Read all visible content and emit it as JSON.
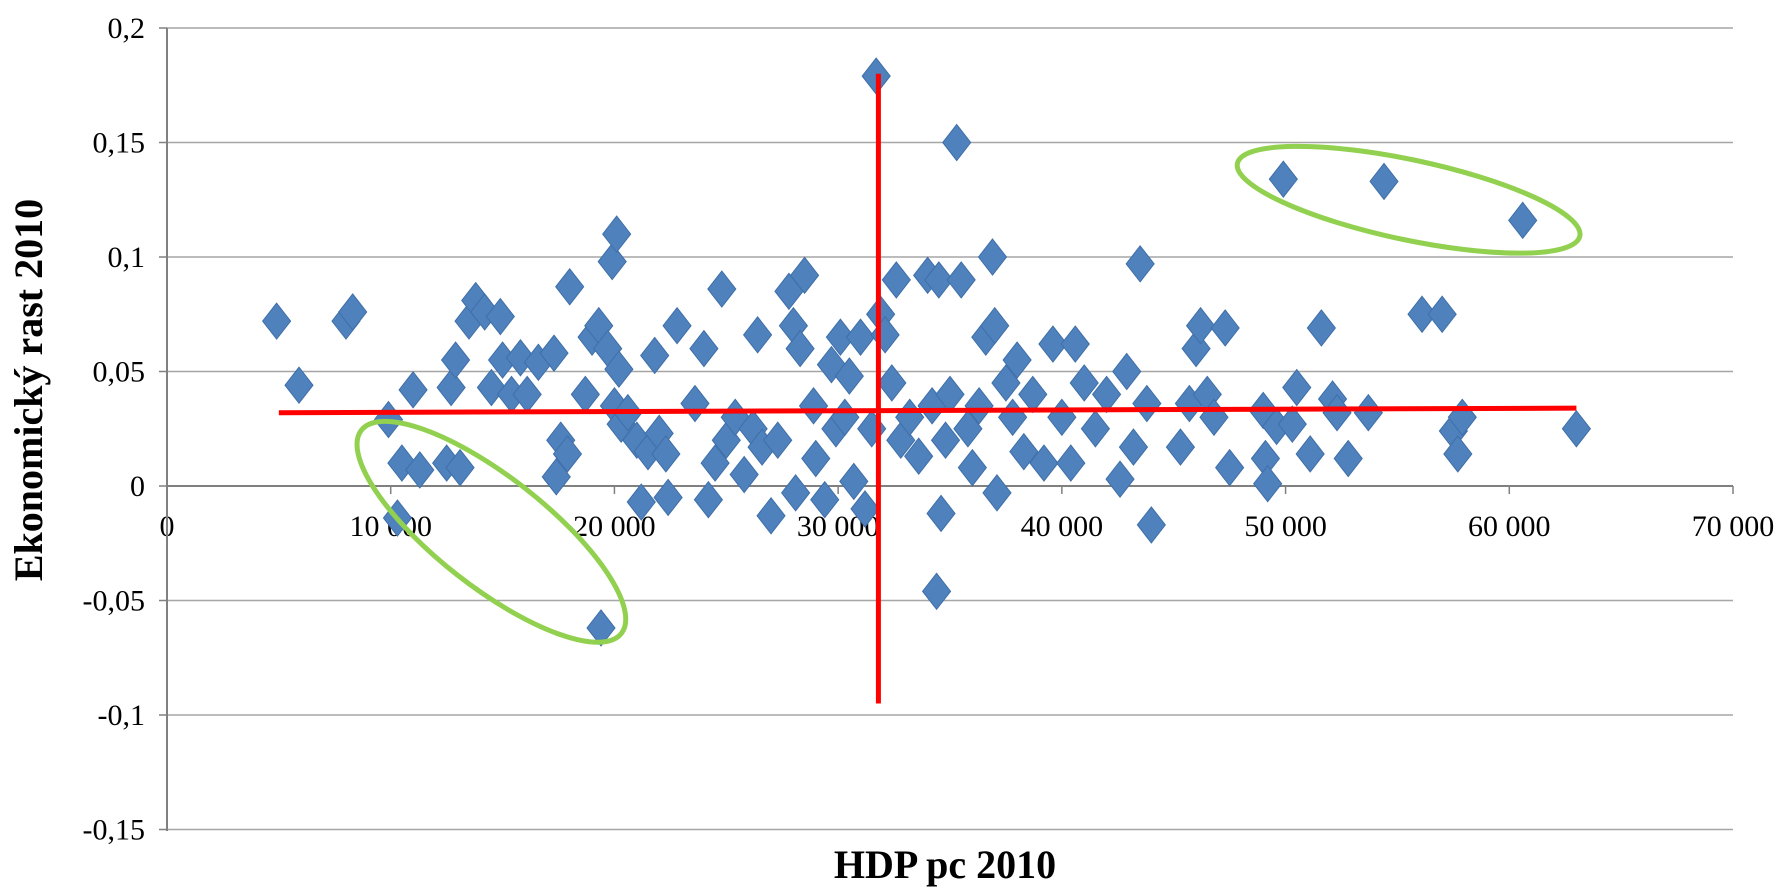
{
  "chart_data": {
    "type": "scatter",
    "title": "",
    "xlabel": "HDP pc 2010",
    "ylabel": "Ekonomický rast 2010",
    "xlim": [
      0,
      70000
    ],
    "ylim": [
      -0.15,
      0.2
    ],
    "x_ticks": [
      {
        "value": 0,
        "label": "0"
      },
      {
        "value": 10000,
        "label": "10 000"
      },
      {
        "value": 20000,
        "label": "20 000"
      },
      {
        "value": 30000,
        "label": "30 000"
      },
      {
        "value": 40000,
        "label": "40 000"
      },
      {
        "value": 50000,
        "label": "50 000"
      },
      {
        "value": 60000,
        "label": "60 000"
      },
      {
        "value": 70000,
        "label": "70 000"
      }
    ],
    "y_ticks": [
      {
        "value": 0.2,
        "label": "0,2"
      },
      {
        "value": 0.15,
        "label": "0,15"
      },
      {
        "value": 0.1,
        "label": "0,1"
      },
      {
        "value": 0.05,
        "label": "0,05"
      },
      {
        "value": 0,
        "label": "0"
      },
      {
        "value": -0.05,
        "label": "-0,05"
      },
      {
        "value": -0.1,
        "label": "-0,1"
      },
      {
        "value": -0.15,
        "label": "-0,15"
      }
    ],
    "grid": "horizontal",
    "legend": "none",
    "colors": {
      "points": "#4f81bd",
      "mean_lines": "#ff0000",
      "highlight": "#92d050",
      "gridline": "#a6a6a6"
    },
    "marker": "diamond",
    "reference_lines": [
      {
        "orientation": "horizontal",
        "x_range": [
          5000,
          63000
        ],
        "y_range": [
          0.032,
          0.034
        ]
      },
      {
        "orientation": "vertical",
        "x": 31800,
        "y_range": [
          -0.095,
          0.18
        ]
      }
    ],
    "highlight_ellipses": [
      {
        "center": [
          55500,
          0.125
        ],
        "note": "top-right cluster"
      },
      {
        "center": [
          14500,
          -0.02
        ],
        "note": "bottom-left cluster"
      }
    ],
    "points": [
      [
        4900,
        0.072
      ],
      [
        5900,
        0.044
      ],
      [
        8000,
        0.072
      ],
      [
        8300,
        0.076
      ],
      [
        9900,
        0.029
      ],
      [
        10300,
        -0.014
      ],
      [
        10500,
        0.01
      ],
      [
        11000,
        0.042
      ],
      [
        11300,
        0.007
      ],
      [
        12500,
        0.01
      ],
      [
        12700,
        0.043
      ],
      [
        12900,
        0.055
      ],
      [
        13100,
        0.008
      ],
      [
        13500,
        0.072
      ],
      [
        13800,
        0.081
      ],
      [
        14200,
        0.076
      ],
      [
        14500,
        0.043
      ],
      [
        14900,
        0.074
      ],
      [
        15000,
        0.055
      ],
      [
        15400,
        0.04
      ],
      [
        15800,
        0.056
      ],
      [
        16100,
        0.04
      ],
      [
        16600,
        0.054
      ],
      [
        17300,
        0.058
      ],
      [
        17400,
        0.004
      ],
      [
        17600,
        0.02
      ],
      [
        17900,
        0.014
      ],
      [
        18000,
        0.087
      ],
      [
        18700,
        0.04
      ],
      [
        19000,
        0.065
      ],
      [
        19300,
        0.07
      ],
      [
        19400,
        -0.062
      ],
      [
        19700,
        0.06
      ],
      [
        19900,
        0.098
      ],
      [
        20100,
        0.11
      ],
      [
        20000,
        0.035
      ],
      [
        20200,
        0.051
      ],
      [
        20300,
        0.027
      ],
      [
        20600,
        0.032
      ],
      [
        21000,
        0.02
      ],
      [
        21200,
        -0.007
      ],
      [
        21500,
        0.015
      ],
      [
        21800,
        0.057
      ],
      [
        22000,
        0.023
      ],
      [
        22300,
        0.014
      ],
      [
        22400,
        -0.005
      ],
      [
        22800,
        0.07
      ],
      [
        23600,
        0.036
      ],
      [
        24000,
        0.06
      ],
      [
        24200,
        -0.006
      ],
      [
        24500,
        0.01
      ],
      [
        24800,
        0.086
      ],
      [
        25000,
        0.02
      ],
      [
        25400,
        0.03
      ],
      [
        25800,
        0.005
      ],
      [
        26200,
        0.025
      ],
      [
        26400,
        0.066
      ],
      [
        26600,
        0.017
      ],
      [
        27000,
        -0.013
      ],
      [
        27300,
        0.02
      ],
      [
        27800,
        0.085
      ],
      [
        28000,
        0.07
      ],
      [
        28100,
        -0.003
      ],
      [
        28300,
        0.06
      ],
      [
        28500,
        0.092
      ],
      [
        28900,
        0.035
      ],
      [
        29000,
        0.012
      ],
      [
        29400,
        -0.006
      ],
      [
        29700,
        0.053
      ],
      [
        29900,
        0.025
      ],
      [
        30100,
        0.065
      ],
      [
        30300,
        0.03
      ],
      [
        30500,
        0.048
      ],
      [
        30700,
        0.002
      ],
      [
        31000,
        0.065
      ],
      [
        31200,
        -0.01
      ],
      [
        31500,
        0.025
      ],
      [
        31700,
        0.179
      ],
      [
        31900,
        0.075
      ],
      [
        32100,
        0.066
      ],
      [
        32400,
        0.045
      ],
      [
        32600,
        0.09
      ],
      [
        32800,
        0.02
      ],
      [
        33200,
        0.03
      ],
      [
        33600,
        0.013
      ],
      [
        34000,
        0.092
      ],
      [
        34200,
        0.035
      ],
      [
        34400,
        -0.046
      ],
      [
        34500,
        0.09
      ],
      [
        34600,
        -0.012
      ],
      [
        34800,
        0.02
      ],
      [
        35000,
        0.04
      ],
      [
        35300,
        0.15
      ],
      [
        35500,
        0.09
      ],
      [
        35800,
        0.025
      ],
      [
        36000,
        0.008
      ],
      [
        36300,
        0.035
      ],
      [
        36600,
        0.065
      ],
      [
        36900,
        0.1
      ],
      [
        37000,
        0.07
      ],
      [
        37100,
        -0.003
      ],
      [
        37500,
        0.045
      ],
      [
        37800,
        0.03
      ],
      [
        38000,
        0.055
      ],
      [
        38300,
        0.015
      ],
      [
        38700,
        0.04
      ],
      [
        39200,
        0.01
      ],
      [
        39600,
        0.062
      ],
      [
        40000,
        0.03
      ],
      [
        40400,
        0.01
      ],
      [
        40600,
        0.062
      ],
      [
        41000,
        0.045
      ],
      [
        41500,
        0.025
      ],
      [
        42000,
        0.04
      ],
      [
        42600,
        0.003
      ],
      [
        42900,
        0.05
      ],
      [
        43200,
        0.017
      ],
      [
        43500,
        0.097
      ],
      [
        43800,
        0.036
      ],
      [
        44000,
        -0.017
      ],
      [
        45300,
        0.017
      ],
      [
        45700,
        0.036
      ],
      [
        46000,
        0.06
      ],
      [
        46200,
        0.07
      ],
      [
        46500,
        0.04
      ],
      [
        46800,
        0.03
      ],
      [
        47300,
        0.069
      ],
      [
        47500,
        0.008
      ],
      [
        49000,
        0.033
      ],
      [
        49100,
        0.012
      ],
      [
        49200,
        0.001
      ],
      [
        49600,
        0.026
      ],
      [
        49900,
        0.134
      ],
      [
        50300,
        0.027
      ],
      [
        50500,
        0.043
      ],
      [
        51100,
        0.014
      ],
      [
        51600,
        0.069
      ],
      [
        52100,
        0.038
      ],
      [
        52300,
        0.032
      ],
      [
        52800,
        0.012
      ],
      [
        53700,
        0.032
      ],
      [
        54400,
        0.133
      ],
      [
        56100,
        0.075
      ],
      [
        57000,
        0.075
      ],
      [
        57500,
        0.024
      ],
      [
        57700,
        0.014
      ],
      [
        57900,
        0.03
      ],
      [
        60600,
        0.116
      ],
      [
        63000,
        0.025
      ]
    ]
  }
}
